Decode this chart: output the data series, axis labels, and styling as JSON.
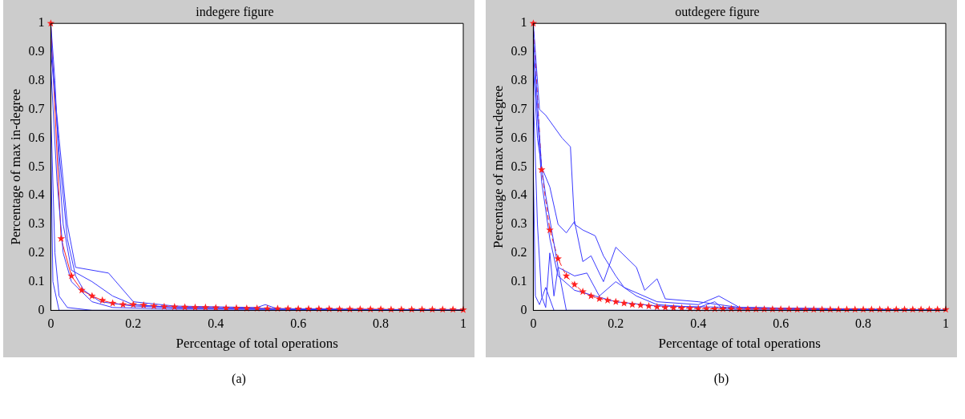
{
  "chart_data": [
    {
      "type": "line",
      "title": "indegere figure",
      "xlabel": "Percentage of total operations",
      "ylabel": "Percentage of max in-degree",
      "xlim": [
        0,
        1
      ],
      "ylim": [
        0,
        1
      ],
      "xticks": [
        0,
        0.2,
        0.4,
        0.6,
        0.8,
        1
      ],
      "yticks": [
        0,
        0.1,
        0.2,
        0.3,
        0.4,
        0.5,
        0.6,
        0.7,
        0.8,
        0.9,
        1
      ],
      "grid": false,
      "legend": false,
      "annotations": [
        "(a)"
      ],
      "series": [
        {
          "color": "#3a3aff",
          "marker": "none",
          "line_style": "solid",
          "x": [
            0,
            0.01,
            0.02,
            0.03,
            0.05,
            0.1,
            0.15,
            0.2,
            0.3,
            0.5,
            1
          ],
          "values": [
            1,
            0.8,
            0.5,
            0.3,
            0.14,
            0.1,
            0.05,
            0.02,
            0.01,
            0.005,
            0
          ]
        },
        {
          "color": "#3a3aff",
          "marker": "none",
          "line_style": "solid",
          "x": [
            0,
            0.02,
            0.04,
            0.06,
            0.14,
            0.2,
            0.3,
            0.5,
            0.52,
            0.55,
            1
          ],
          "values": [
            0.9,
            0.6,
            0.3,
            0.15,
            0.13,
            0.03,
            0.015,
            0.01,
            0.02,
            0.005,
            0
          ]
        },
        {
          "color": "#3a3aff",
          "marker": "none",
          "line_style": "solid",
          "x": [
            0,
            0.01,
            0.02,
            0.04,
            0.1,
            1
          ],
          "values": [
            0.7,
            0.2,
            0.05,
            0.01,
            0,
            0
          ]
        },
        {
          "color": "#3a3aff",
          "marker": "none",
          "line_style": "solid",
          "x": [
            0,
            0.005,
            0.02,
            1
          ],
          "values": [
            0.6,
            0.1,
            0,
            0
          ]
        },
        {
          "color": "#3a3aff",
          "marker": "none",
          "line_style": "solid",
          "x": [
            0,
            0.02,
            0.04,
            0.06,
            0.08,
            0.12,
            0.2,
            0.3,
            0.6,
            1
          ],
          "values": [
            0.95,
            0.55,
            0.25,
            0.12,
            0.07,
            0.03,
            0.015,
            0.01,
            0.005,
            0
          ]
        },
        {
          "color": "#3a3aff",
          "marker": "none",
          "line_style": "solid",
          "x": [
            0,
            0.015,
            0.03,
            0.05,
            0.1,
            0.15,
            0.3,
            1
          ],
          "values": [
            0.85,
            0.45,
            0.2,
            0.1,
            0.03,
            0.01,
            0.005,
            0
          ]
        },
        {
          "color": "#ff2020",
          "marker": "star",
          "line_style": "solid",
          "x": [
            0,
            0.025,
            0.05,
            0.075,
            0.1,
            0.125,
            0.15,
            0.175,
            0.2,
            0.225,
            0.25,
            0.275,
            0.3,
            0.325,
            0.35,
            0.375,
            0.4,
            0.425,
            0.45,
            0.475,
            0.5,
            0.525,
            0.55,
            0.575,
            0.6,
            0.625,
            0.65,
            0.675,
            0.7,
            0.725,
            0.75,
            0.775,
            0.8,
            0.825,
            0.85,
            0.875,
            0.9,
            0.925,
            0.95,
            0.975,
            1
          ],
          "values": [
            1,
            0.25,
            0.12,
            0.07,
            0.05,
            0.035,
            0.025,
            0.02,
            0.02,
            0.018,
            0.015,
            0.013,
            0.012,
            0.011,
            0.01,
            0.01,
            0.009,
            0.008,
            0.008,
            0.007,
            0.007,
            0.006,
            0.006,
            0.006,
            0.005,
            0.005,
            0.005,
            0.005,
            0.004,
            0.004,
            0.004,
            0.004,
            0.004,
            0.003,
            0.003,
            0.003,
            0.003,
            0.003,
            0.003,
            0.003,
            0.002
          ]
        }
      ]
    },
    {
      "type": "line",
      "title": "outdegere figure",
      "xlabel": "Percentage of total operations",
      "ylabel": "Percentage of max out-degree",
      "xlim": [
        0,
        1
      ],
      "ylim": [
        0,
        1
      ],
      "xticks": [
        0,
        0.2,
        0.4,
        0.6,
        0.8,
        1
      ],
      "yticks": [
        0,
        0.1,
        0.2,
        0.3,
        0.4,
        0.5,
        0.6,
        0.7,
        0.8,
        0.9,
        1
      ],
      "grid": false,
      "legend": false,
      "annotations": [
        "(b)"
      ],
      "series": [
        {
          "color": "#3a3aff",
          "marker": "none",
          "line_style": "solid",
          "x": [
            0,
            0.015,
            0.03,
            0.07,
            0.09,
            0.1,
            0.12,
            0.15,
            0.17,
            0.2,
            0.22,
            0.3,
            0.4,
            0.45,
            0.5,
            1
          ],
          "values": [
            1,
            0.7,
            0.68,
            0.6,
            0.57,
            0.3,
            0.28,
            0.26,
            0.19,
            0.12,
            0.08,
            0.03,
            0.02,
            0.05,
            0.01,
            0
          ]
        },
        {
          "color": "#3a3aff",
          "marker": "none",
          "line_style": "solid",
          "x": [
            0,
            0.02,
            0.04,
            0.06,
            0.08,
            0.1,
            0.12,
            0.14,
            0.17,
            0.2,
            0.25,
            0.27,
            0.3,
            0.32,
            0.4,
            0.5,
            1
          ],
          "values": [
            0.95,
            0.5,
            0.43,
            0.3,
            0.27,
            0.31,
            0.17,
            0.19,
            0.1,
            0.22,
            0.15,
            0.07,
            0.11,
            0.04,
            0.03,
            0.01,
            0
          ]
        },
        {
          "color": "#3a3aff",
          "marker": "none",
          "line_style": "solid",
          "x": [
            0,
            0.01,
            0.03,
            0.06,
            0.1,
            0.13,
            0.16,
            0.2,
            0.25,
            0.3,
            0.4,
            0.44,
            0.46,
            1
          ],
          "values": [
            0.85,
            0.6,
            0.4,
            0.15,
            0.12,
            0.13,
            0.05,
            0.1,
            0.05,
            0.02,
            0.01,
            0.03,
            0.005,
            0
          ]
        },
        {
          "color": "#3a3aff",
          "marker": "none",
          "line_style": "solid",
          "x": [
            0,
            0.01,
            0.02,
            0.03,
            0.04,
            0.05,
            0.06,
            0.08,
            1
          ],
          "values": [
            0.75,
            0.3,
            0.05,
            0.01,
            0.2,
            0.05,
            0.15,
            0,
            0
          ]
        },
        {
          "color": "#3a3aff",
          "marker": "none",
          "line_style": "solid",
          "x": [
            0,
            0.005,
            0.015,
            0.03,
            0.05,
            1
          ],
          "values": [
            0.5,
            0.05,
            0.02,
            0.08,
            0,
            0
          ]
        },
        {
          "color": "#3a3aff",
          "marker": "none",
          "line_style": "solid",
          "x": [
            0,
            0.02,
            0.04,
            0.06,
            0.1,
            0.15,
            0.2,
            0.3,
            0.5,
            0.7,
            1
          ],
          "values": [
            0.9,
            0.45,
            0.25,
            0.12,
            0.07,
            0.05,
            0.03,
            0.015,
            0.01,
            0.005,
            0
          ]
        },
        {
          "color": "#ff2020",
          "marker": "star",
          "line_style": "dashed",
          "x": [
            0,
            0.02,
            0.04,
            0.06,
            0.08,
            0.1,
            0.12,
            0.14,
            0.16,
            0.18,
            0.2,
            0.22,
            0.24,
            0.26,
            0.28,
            0.3,
            0.32,
            0.34,
            0.36,
            0.38,
            0.4,
            0.42,
            0.44,
            0.46,
            0.48,
            0.5,
            0.52,
            0.54,
            0.56,
            0.58,
            0.6,
            0.62,
            0.64,
            0.66,
            0.68,
            0.7,
            0.72,
            0.74,
            0.76,
            0.78,
            0.8,
            0.82,
            0.84,
            0.86,
            0.88,
            0.9,
            0.92,
            0.94,
            0.96,
            0.98,
            1
          ],
          "values": [
            1,
            0.49,
            0.28,
            0.18,
            0.12,
            0.09,
            0.065,
            0.05,
            0.04,
            0.035,
            0.03,
            0.025,
            0.02,
            0.018,
            0.015,
            0.012,
            0.01,
            0.009,
            0.008,
            0.007,
            0.006,
            0.006,
            0.005,
            0.005,
            0.005,
            0.004,
            0.004,
            0.004,
            0.004,
            0.004,
            0.004,
            0.004,
            0.003,
            0.003,
            0.003,
            0.003,
            0.003,
            0.003,
            0.003,
            0.003,
            0.003,
            0.003,
            0.003,
            0.003,
            0.003,
            0.003,
            0.003,
            0.003,
            0.003,
            0.003,
            0.003
          ]
        }
      ]
    }
  ]
}
